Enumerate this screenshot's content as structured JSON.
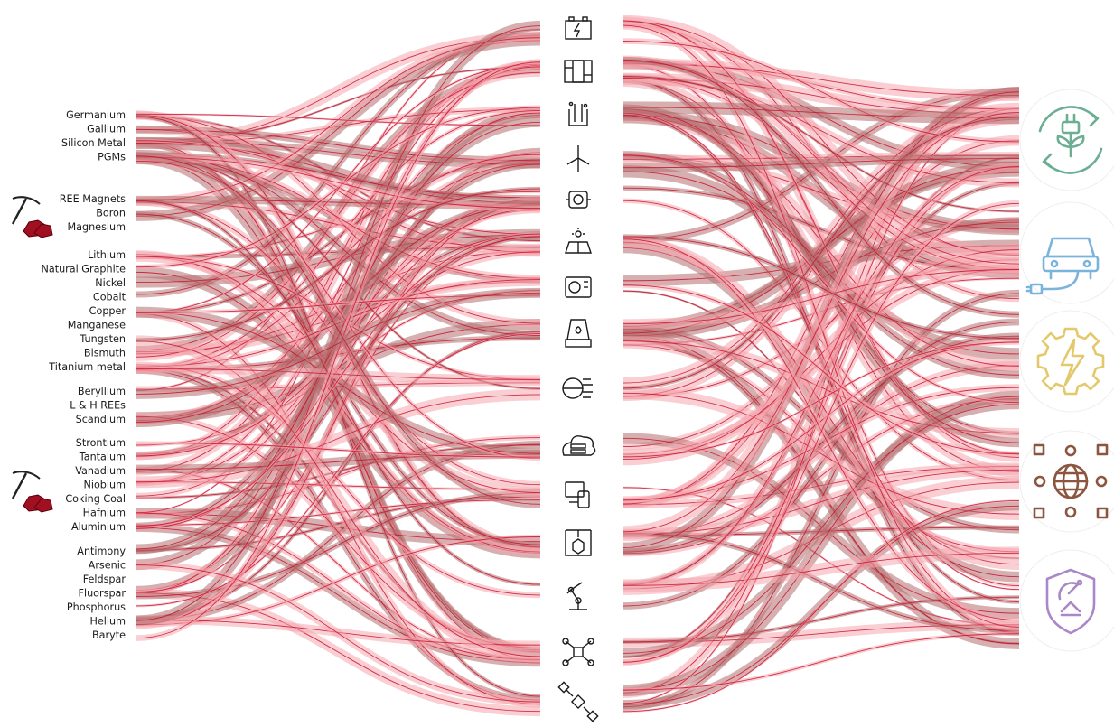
{
  "materials": {
    "groups": [
      [
        "Germanium",
        "Gallium",
        "Silicon Metal",
        "PGMs"
      ],
      [
        "REE Magnets",
        "Boron",
        "Magnesium"
      ],
      [
        "Lithium",
        "Natural Graphite",
        "Nickel",
        "Cobalt",
        "Copper",
        "Manganese",
        "Tungsten",
        "Bismuth",
        "Titanium metal"
      ],
      [
        "Beryllium",
        "L & H REEs",
        "Scandium"
      ],
      [
        "Strontium",
        "Tantalum",
        "Vanadium",
        "Niobium",
        "Coking Coal",
        "Hafnium",
        "Aluminium"
      ],
      [
        "Antimony",
        "Arsenic",
        "Feldspar",
        "Fluorspar",
        "Phosphorus",
        "Helium",
        "Baryte"
      ]
    ]
  },
  "mining_icons": [
    "pickaxe-ore-icon",
    "pickaxe-ore-icon"
  ],
  "technologies": [
    "battery-icon",
    "fuel-cell-icon",
    "electrolyser-icon",
    "wind-turbine-icon",
    "electric-motor-icon",
    "solar-panel-icon",
    "heat-pump-icon",
    "industrial-furnace-icon",
    "digital-chip-icon",
    "cloud-data-server-icon",
    "devices-icon",
    "3d-printing-icon",
    "robotic-arm-icon",
    "drone-icon",
    "satellite-icon"
  ],
  "sectors": [
    {
      "icon": "renewable-energy-icon",
      "color": "#6cae93"
    },
    {
      "icon": "electric-mobility-icon",
      "color": "#7ab3dc"
    },
    {
      "icon": "energy-intensive-industry-icon",
      "color": "#e3c86c"
    },
    {
      "icon": "digital-icon",
      "color": "#8c5540"
    },
    {
      "icon": "defence-space-icon",
      "color": "#a987c8"
    }
  ],
  "colors": {
    "accent": "#c8102e",
    "flow_light": "#f4a7ae",
    "flow_dark": "#b57070",
    "ore": "#a01020"
  }
}
